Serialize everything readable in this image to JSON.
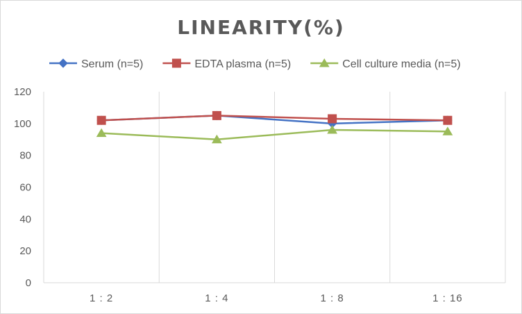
{
  "chart_data": {
    "type": "line",
    "title": "LINEARITY(%)",
    "xlabel": "",
    "ylabel": "",
    "categories": [
      "1 : 2",
      "1 : 4",
      "1 : 8",
      "1 : 16"
    ],
    "ylim": [
      0,
      120
    ],
    "yticks": [
      0,
      20,
      40,
      60,
      80,
      100,
      120
    ],
    "grid": "vertical",
    "legend_position": "top",
    "series": [
      {
        "name": "Serum (n=5)",
        "values": [
          102,
          105,
          100,
          102
        ],
        "color": "#4472c4",
        "marker": "diamond"
      },
      {
        "name": "EDTA plasma (n=5)",
        "values": [
          102,
          105,
          103,
          102
        ],
        "color": "#c0504d",
        "marker": "square"
      },
      {
        "name": "Cell culture media (n=5)",
        "values": [
          94,
          90,
          96,
          95
        ],
        "color": "#9bbb59",
        "marker": "triangle"
      }
    ]
  }
}
